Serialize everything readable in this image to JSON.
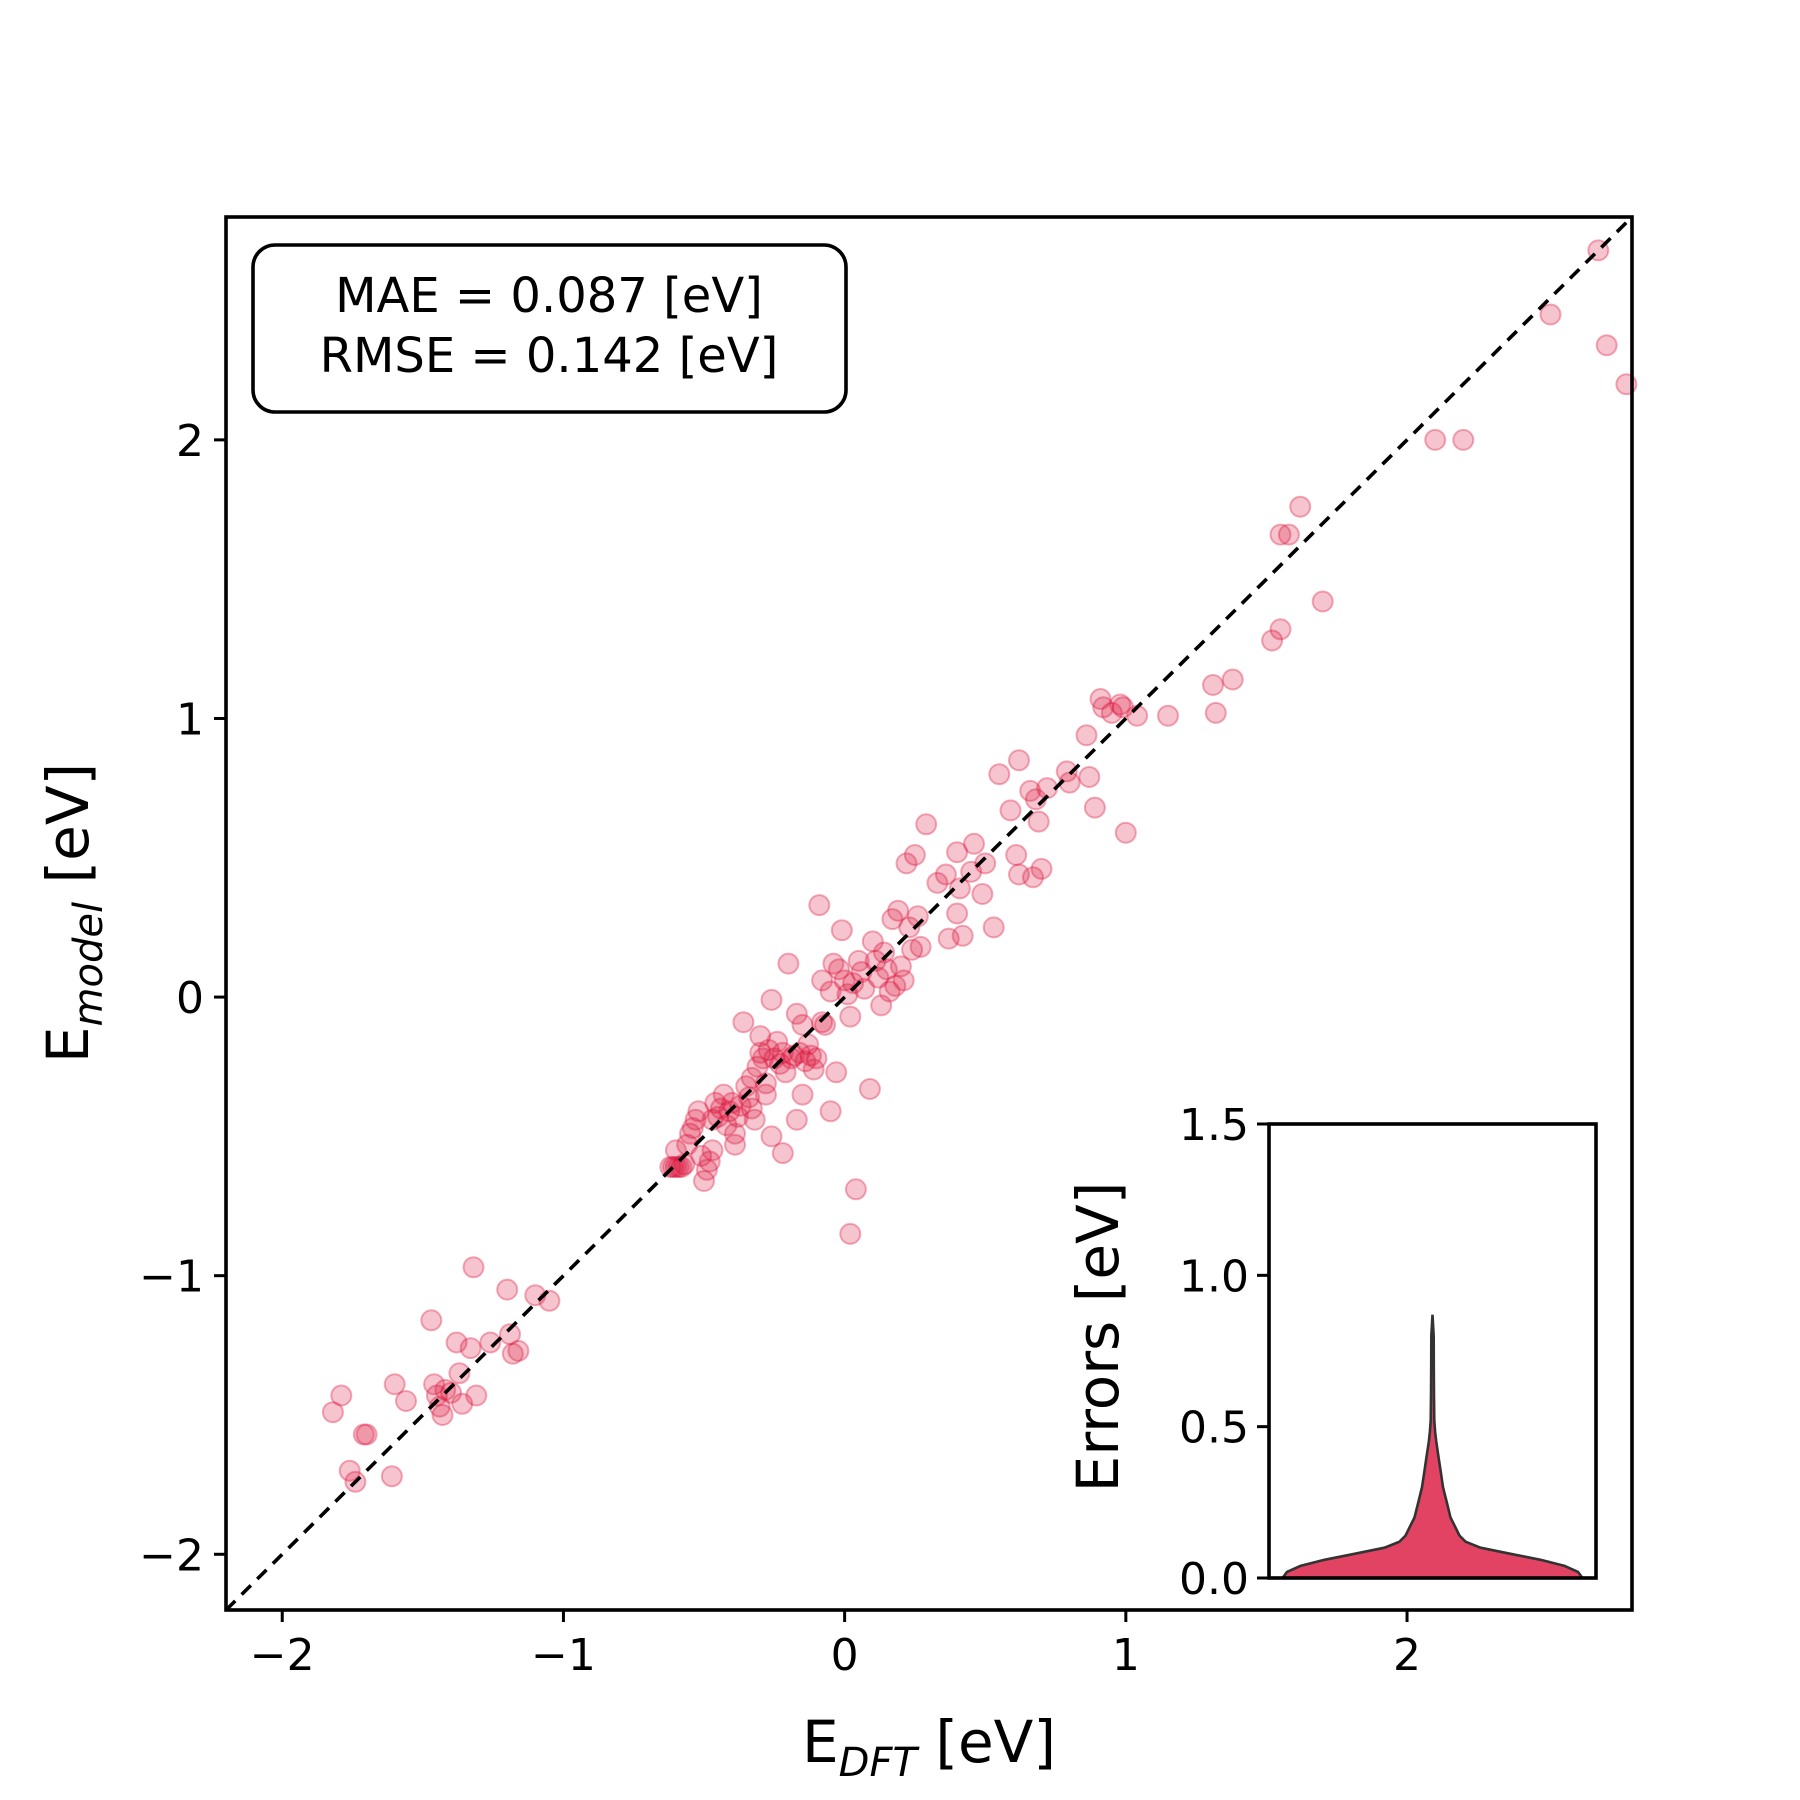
{
  "stats_box": {
    "mae_line": "MAE =  0.087 [eV]",
    "rmse_line": "RMSE =  0.142 [eV]"
  },
  "colors": {
    "points": "#dc143c",
    "violin_fill": "#dc143c",
    "diagonal": "#000000"
  },
  "chart_data": [
    {
      "type": "scatter",
      "xlabel_main": "E",
      "xlabel_sub": "DFT",
      "xlabel_unit": " [eV]",
      "ylabel_main": "E",
      "ylabel_sub": "model",
      "ylabel_unit": " [eV]",
      "xlim": [
        -2.2,
        2.8
      ],
      "ylim": [
        -2.2,
        2.8
      ],
      "xticks": [
        -2,
        -1,
        0,
        1,
        2
      ],
      "yticks": [
        -2,
        -1,
        0,
        1,
        2
      ],
      "tick_labels": [
        "−2",
        "−1",
        "0",
        "1",
        "2"
      ],
      "reference_line": "y = x (dashed)",
      "point_alpha": 0.25,
      "points": [
        [
          -1.82,
          -1.49
        ],
        [
          -1.79,
          -1.43
        ],
        [
          -1.76,
          -1.7
        ],
        [
          -1.74,
          -1.74
        ],
        [
          -1.71,
          -1.57
        ],
        [
          -1.7,
          -1.57
        ],
        [
          -1.61,
          -1.72
        ],
        [
          -1.6,
          -1.39
        ],
        [
          -1.56,
          -1.45
        ],
        [
          -1.47,
          -1.16
        ],
        [
          -1.46,
          -1.39
        ],
        [
          -1.45,
          -1.43
        ],
        [
          -1.44,
          -1.47
        ],
        [
          -1.43,
          -1.5
        ],
        [
          -1.42,
          -1.41
        ],
        [
          -1.4,
          -1.42
        ],
        [
          -1.38,
          -1.24
        ],
        [
          -1.37,
          -1.35
        ],
        [
          -1.36,
          -1.46
        ],
        [
          -1.33,
          -1.26
        ],
        [
          -1.32,
          -0.97
        ],
        [
          -1.31,
          -1.43
        ],
        [
          -1.26,
          -1.24
        ],
        [
          -1.2,
          -1.05
        ],
        [
          -1.19,
          -1.21
        ],
        [
          -1.18,
          -1.28
        ],
        [
          -1.16,
          -1.27
        ],
        [
          -1.1,
          -1.07
        ],
        [
          -1.05,
          -1.09
        ],
        [
          -0.62,
          -0.61
        ],
        [
          -0.61,
          -0.61
        ],
        [
          -0.6,
          -0.61
        ],
        [
          -0.59,
          -0.61
        ],
        [
          -0.58,
          -0.61
        ],
        [
          -0.57,
          -0.6
        ],
        [
          -0.6,
          -0.55
        ],
        [
          -0.56,
          -0.53
        ],
        [
          -0.55,
          -0.49
        ],
        [
          -0.54,
          -0.47
        ],
        [
          -0.53,
          -0.44
        ],
        [
          -0.52,
          -0.41
        ],
        [
          -0.51,
          -0.57
        ],
        [
          -0.5,
          -0.66
        ],
        [
          -0.49,
          -0.62
        ],
        [
          -0.48,
          -0.59
        ],
        [
          -0.47,
          -0.55
        ],
        [
          -0.47,
          -0.44
        ],
        [
          -0.46,
          -0.38
        ],
        [
          -0.45,
          -0.43
        ],
        [
          -0.44,
          -0.4
        ],
        [
          -0.43,
          -0.35
        ],
        [
          -0.42,
          -0.46
        ],
        [
          -0.41,
          -0.41
        ],
        [
          -0.4,
          -0.38
        ],
        [
          -0.39,
          -0.53
        ],
        [
          -0.39,
          -0.49
        ],
        [
          -0.38,
          -0.43
        ],
        [
          -0.37,
          -0.39
        ],
        [
          -0.36,
          -0.09
        ],
        [
          -0.35,
          -0.32
        ],
        [
          -0.34,
          -0.36
        ],
        [
          -0.33,
          -0.29
        ],
        [
          -0.33,
          -0.4
        ],
        [
          -0.32,
          -0.44
        ],
        [
          -0.31,
          -0.25
        ],
        [
          -0.3,
          -0.2
        ],
        [
          -0.3,
          -0.14
        ],
        [
          -0.29,
          -0.22
        ],
        [
          -0.28,
          -0.31
        ],
        [
          -0.28,
          -0.35
        ],
        [
          -0.27,
          -0.19
        ],
        [
          -0.26,
          -0.01
        ],
        [
          -0.26,
          -0.5
        ],
        [
          -0.25,
          -0.22
        ],
        [
          -0.24,
          -0.16
        ],
        [
          -0.23,
          -0.24
        ],
        [
          -0.22,
          -0.56
        ],
        [
          -0.22,
          -0.2
        ],
        [
          -0.21,
          -0.27
        ],
        [
          -0.2,
          0.12
        ],
        [
          -0.19,
          -0.22
        ],
        [
          -0.18,
          -0.21
        ],
        [
          -0.17,
          -0.06
        ],
        [
          -0.17,
          -0.44
        ],
        [
          -0.16,
          -0.2
        ],
        [
          -0.15,
          -0.35
        ],
        [
          -0.15,
          -0.1
        ],
        [
          -0.14,
          -0.23
        ],
        [
          -0.13,
          -0.17
        ],
        [
          -0.12,
          -0.21
        ],
        [
          -0.11,
          -0.26
        ],
        [
          -0.1,
          -0.22
        ],
        [
          -0.09,
          0.33
        ],
        [
          -0.08,
          -0.09
        ],
        [
          -0.08,
          0.06
        ],
        [
          -0.07,
          -0.1
        ],
        [
          -0.05,
          -0.41
        ],
        [
          -0.05,
          0.02
        ],
        [
          -0.04,
          0.12
        ],
        [
          -0.03,
          -0.27
        ],
        [
          -0.02,
          0.1
        ],
        [
          -0.01,
          0.24
        ],
        [
          0.0,
          0.06
        ],
        [
          0.01,
          0.01
        ],
        [
          0.02,
          -0.07
        ],
        [
          0.02,
          -0.85
        ],
        [
          0.03,
          0.05
        ],
        [
          0.04,
          -0.69
        ],
        [
          0.05,
          0.13
        ],
        [
          0.06,
          0.09
        ],
        [
          0.07,
          0.03
        ],
        [
          0.09,
          -0.33
        ],
        [
          0.1,
          0.2
        ],
        [
          0.11,
          0.13
        ],
        [
          0.12,
          0.07
        ],
        [
          0.13,
          -0.03
        ],
        [
          0.14,
          0.16
        ],
        [
          0.15,
          0.1
        ],
        [
          0.16,
          0.02
        ],
        [
          0.17,
          0.28
        ],
        [
          0.18,
          0.04
        ],
        [
          0.19,
          0.31
        ],
        [
          0.2,
          0.11
        ],
        [
          0.21,
          0.06
        ],
        [
          0.22,
          0.48
        ],
        [
          0.23,
          0.25
        ],
        [
          0.24,
          0.17
        ],
        [
          0.25,
          0.51
        ],
        [
          0.26,
          0.29
        ],
        [
          0.27,
          0.18
        ],
        [
          0.29,
          0.62
        ],
        [
          0.33,
          0.41
        ],
        [
          0.36,
          0.44
        ],
        [
          0.37,
          0.21
        ],
        [
          0.4,
          0.52
        ],
        [
          0.4,
          0.3
        ],
        [
          0.41,
          0.39
        ],
        [
          0.42,
          0.22
        ],
        [
          0.45,
          0.45
        ],
        [
          0.46,
          0.55
        ],
        [
          0.49,
          0.37
        ],
        [
          0.5,
          0.48
        ],
        [
          0.53,
          0.25
        ],
        [
          0.55,
          0.8
        ],
        [
          0.59,
          0.67
        ],
        [
          0.61,
          0.51
        ],
        [
          0.62,
          0.85
        ],
        [
          0.62,
          0.44
        ],
        [
          0.66,
          0.74
        ],
        [
          0.67,
          0.43
        ],
        [
          0.68,
          0.71
        ],
        [
          0.69,
          0.63
        ],
        [
          0.7,
          0.46
        ],
        [
          0.72,
          0.75
        ],
        [
          0.79,
          0.81
        ],
        [
          0.8,
          0.77
        ],
        [
          0.86,
          0.94
        ],
        [
          0.87,
          0.79
        ],
        [
          0.89,
          0.68
        ],
        [
          0.91,
          1.07
        ],
        [
          0.92,
          1.04
        ],
        [
          0.95,
          1.02
        ],
        [
          0.98,
          1.05
        ],
        [
          0.99,
          1.04
        ],
        [
          1.0,
          0.59
        ],
        [
          1.04,
          1.01
        ],
        [
          1.15,
          1.01
        ],
        [
          1.31,
          1.12
        ],
        [
          1.32,
          1.02
        ],
        [
          1.38,
          1.14
        ],
        [
          1.52,
          1.28
        ],
        [
          1.55,
          1.32
        ],
        [
          1.55,
          1.66
        ],
        [
          1.58,
          1.66
        ],
        [
          1.62,
          1.76
        ],
        [
          1.7,
          1.42
        ],
        [
          2.1,
          2.0
        ],
        [
          2.2,
          2.0
        ],
        [
          2.51,
          2.45
        ],
        [
          2.68,
          2.68
        ],
        [
          2.71,
          2.34
        ],
        [
          2.78,
          2.2
        ]
      ]
    },
    {
      "type": "violin",
      "ylabel": "Errors [eV]",
      "ylim": [
        0.0,
        1.5
      ],
      "yticks": [
        0.0,
        0.5,
        1.0,
        1.5
      ],
      "ytick_labels": [
        "0.0",
        "0.5",
        "1.0",
        "1.5"
      ],
      "xticks": [
        2
      ],
      "xtick_labels": [
        "2"
      ],
      "error_min": 0.0,
      "error_max": 0.87,
      "density_profile": [
        [
          0.0,
          1.0
        ],
        [
          0.02,
          0.97
        ],
        [
          0.04,
          0.88
        ],
        [
          0.06,
          0.72
        ],
        [
          0.08,
          0.52
        ],
        [
          0.1,
          0.32
        ],
        [
          0.12,
          0.22
        ],
        [
          0.14,
          0.18
        ],
        [
          0.17,
          0.15
        ],
        [
          0.2,
          0.12
        ],
        [
          0.25,
          0.095
        ],
        [
          0.3,
          0.07
        ],
        [
          0.35,
          0.055
        ],
        [
          0.4,
          0.04
        ],
        [
          0.45,
          0.025
        ],
        [
          0.48,
          0.018
        ],
        [
          0.52,
          0.012
        ],
        [
          0.6,
          0.01
        ],
        [
          0.7,
          0.009
        ],
        [
          0.8,
          0.008
        ],
        [
          0.87,
          0.0
        ]
      ]
    }
  ]
}
